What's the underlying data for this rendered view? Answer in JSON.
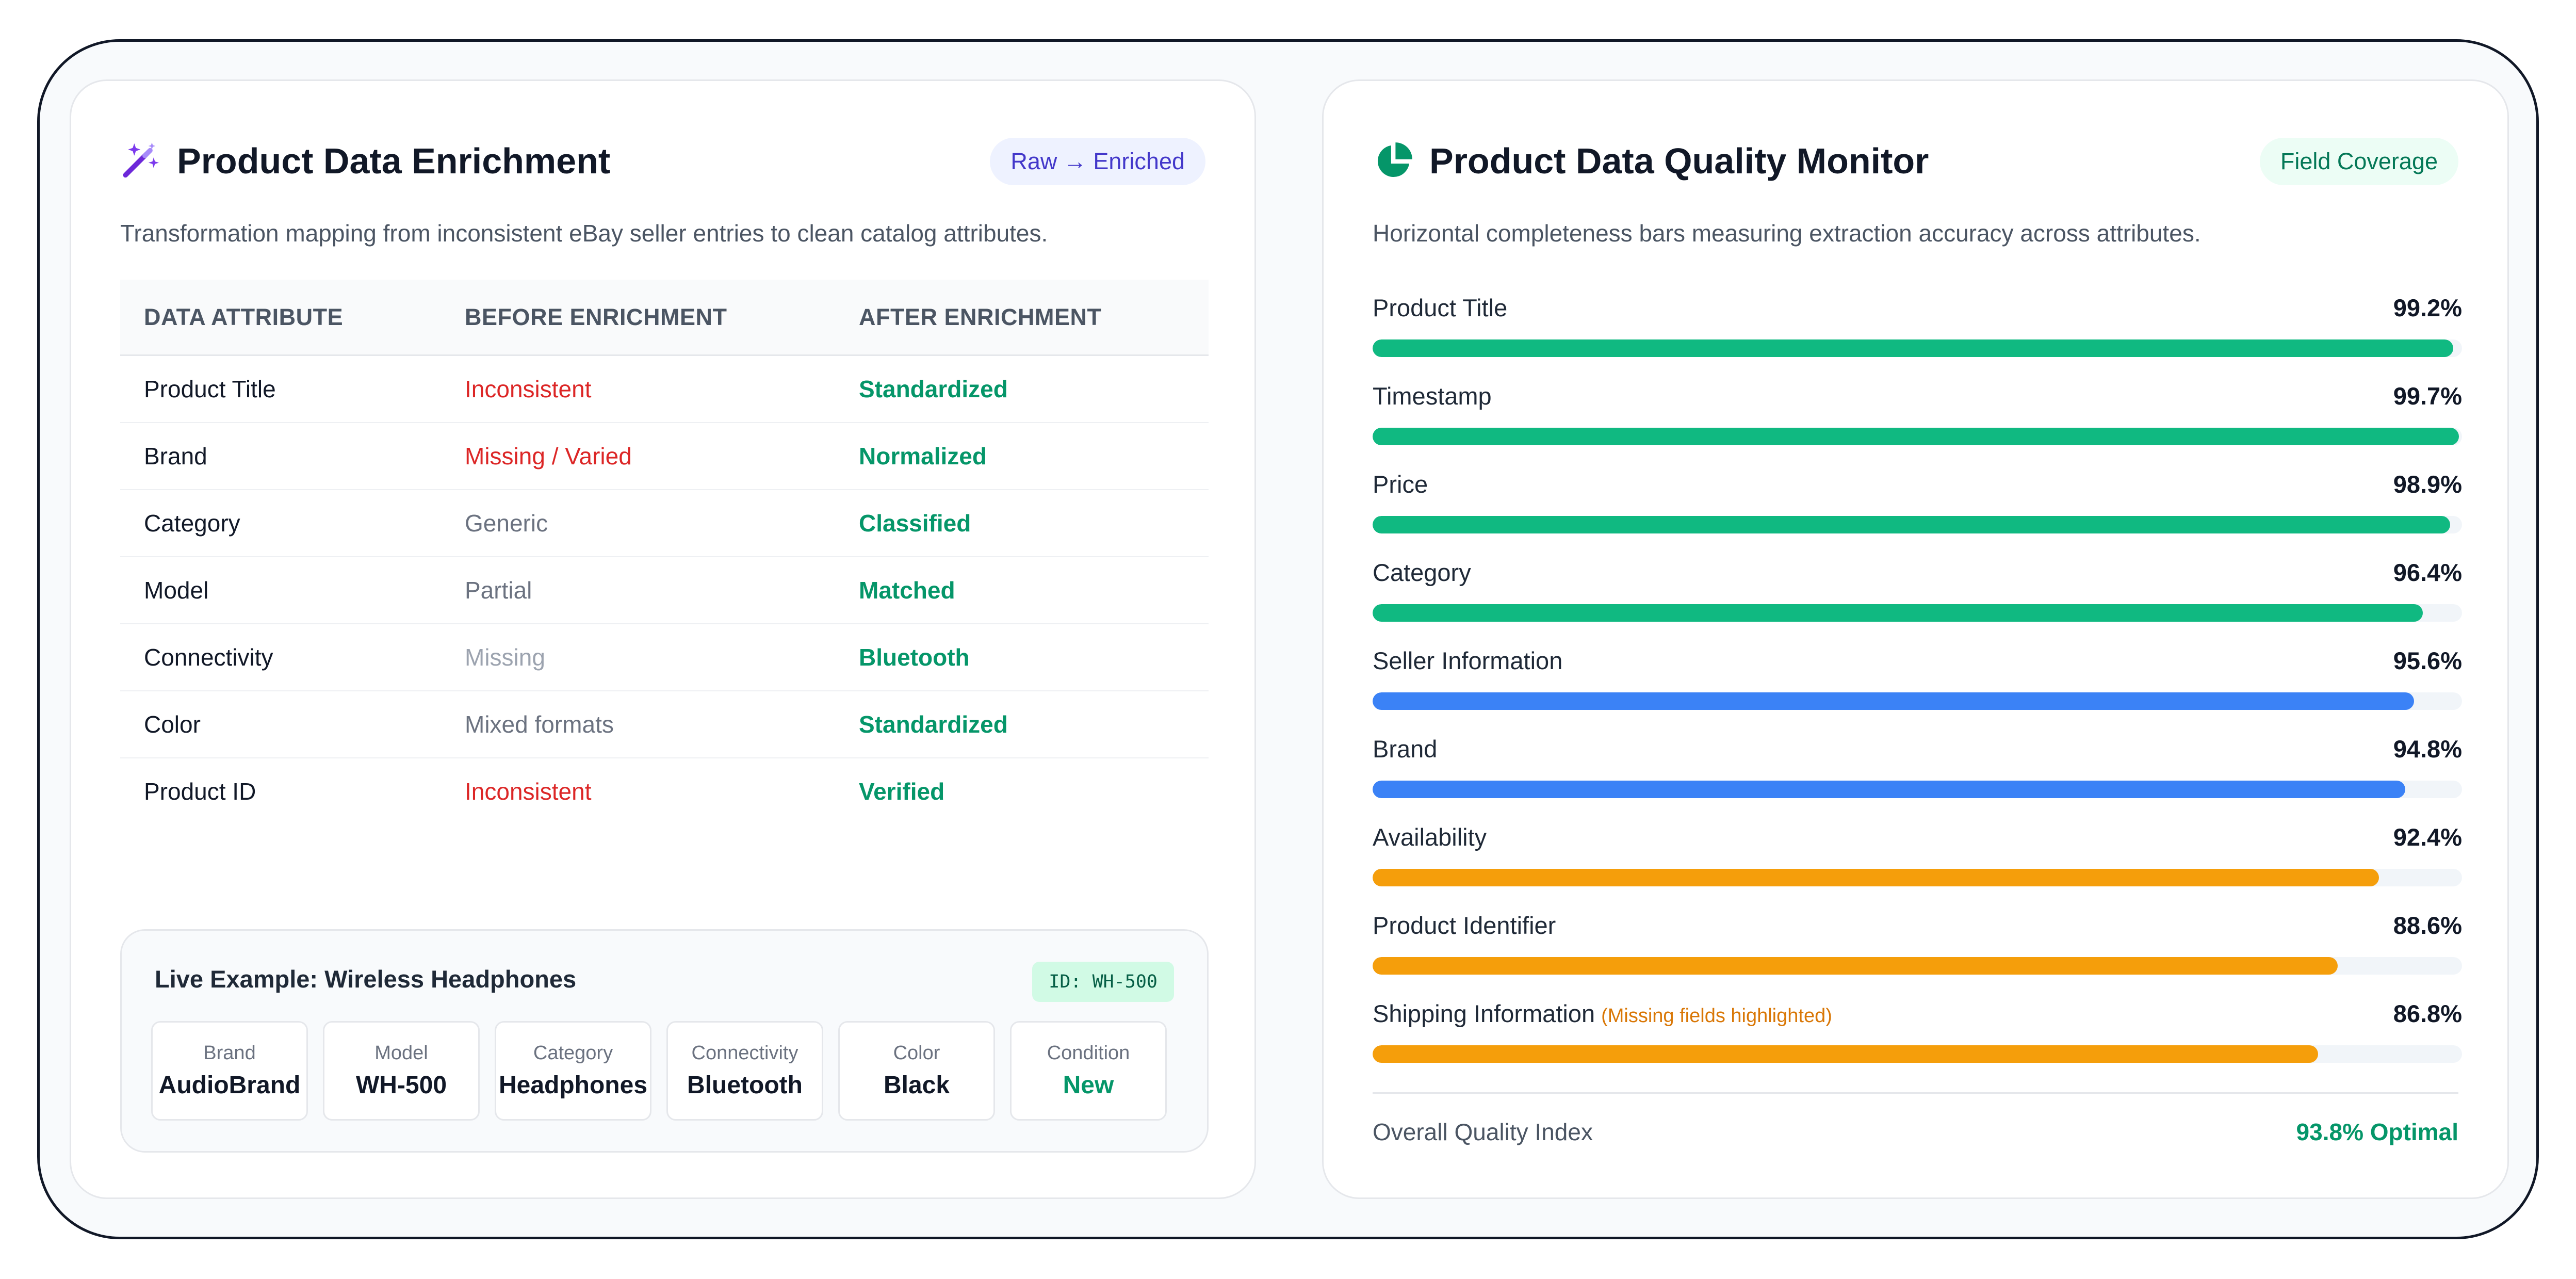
{
  "enrichment": {
    "title": "Product Data Enrichment",
    "icon": "magic-wand-icon",
    "badge": "Raw → Enriched",
    "subtitle": "Transformation mapping from inconsistent eBay seller entries to clean catalog attributes.",
    "columns": [
      "DATA ATTRIBUTE",
      "BEFORE ENRICHMENT",
      "AFTER ENRICHMENT"
    ],
    "rows": [
      {
        "attribute": "Product Title",
        "before": "Inconsistent",
        "after": "Standardized",
        "before_color": "#dc2626"
      },
      {
        "attribute": "Brand",
        "before": "Missing / Varied",
        "after": "Normalized",
        "before_color": "#dc2626"
      },
      {
        "attribute": "Category",
        "before": "Generic",
        "after": "Classified",
        "before_color": "#6b7280"
      },
      {
        "attribute": "Model",
        "before": "Partial",
        "after": "Matched",
        "before_color": "#6b7280"
      },
      {
        "attribute": "Connectivity",
        "before": "Missing",
        "after": "Bluetooth",
        "before_color": "#9ca3af"
      },
      {
        "attribute": "Color",
        "before": "Mixed formats",
        "after": "Standardized",
        "before_color": "#6b7280"
      },
      {
        "attribute": "Product ID",
        "before": "Inconsistent",
        "after": "Verified",
        "before_color": "#dc2626"
      }
    ],
    "example": {
      "title": "Live Example: Wireless Headphones",
      "id_badge": "ID: WH-500",
      "attributes": [
        {
          "label": "Brand",
          "value": "AudioBrand"
        },
        {
          "label": "Model",
          "value": "WH-500"
        },
        {
          "label": "Category",
          "value": "Headphones"
        },
        {
          "label": "Connectivity",
          "value": "Bluetooth"
        },
        {
          "label": "Color",
          "value": "Black"
        },
        {
          "label": "Condition",
          "value": "New"
        }
      ]
    }
  },
  "quality": {
    "title": "Product Data Quality Monitor",
    "icon": "pie-chart-icon",
    "badge": "Field Coverage",
    "subtitle": "Horizontal completeness bars measuring extraction accuracy across attributes.",
    "fields": [
      {
        "label": "Product Title",
        "value": 99.2,
        "display": "99.2%",
        "color": "#10b981"
      },
      {
        "label": "Timestamp",
        "value": 99.7,
        "display": "99.7%",
        "color": "#10b981"
      },
      {
        "label": "Price",
        "value": 98.9,
        "display": "98.9%",
        "color": "#10b981"
      },
      {
        "label": "Category",
        "value": 96.4,
        "display": "96.4%",
        "color": "#10b981"
      },
      {
        "label": "Seller Information",
        "value": 95.6,
        "display": "95.6%",
        "color": "#3b82f6"
      },
      {
        "label": "Brand",
        "value": 94.8,
        "display": "94.8%",
        "color": "#3b82f6"
      },
      {
        "label": "Availability",
        "value": 92.4,
        "display": "92.4%",
        "color": "#f59e0b"
      },
      {
        "label": "Product Identifier",
        "value": 88.6,
        "display": "88.6%",
        "color": "#f59e0b"
      },
      {
        "label": "Shipping Information",
        "note": "(Missing fields highlighted)",
        "value": 86.8,
        "display": "86.8%",
        "color": "#f59e0b"
      }
    ],
    "overall_label": "Overall Quality Index",
    "overall_value": "93.8% Optimal"
  },
  "colors": {
    "accent_green": "#059669",
    "accent_blue": "#3b82f6",
    "accent_amber": "#f59e0b",
    "warning_red": "#dc2626",
    "icon_purple": "#6d28d9"
  }
}
